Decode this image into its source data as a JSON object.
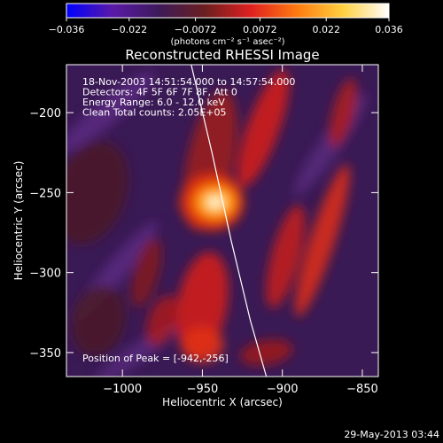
{
  "chart_data": {
    "type": "heatmap",
    "title": "Reconstructed RHESSI Image",
    "xlabel": "Heliocentric X (arcsec)",
    "ylabel": "Heliocentric Y (arcsec)",
    "xlim": [
      -1035,
      -840
    ],
    "ylim": [
      -365,
      -170
    ],
    "xticks": [
      {
        "value": -1000,
        "label": "−1000"
      },
      {
        "value": -950,
        "label": "−950"
      },
      {
        "value": -900,
        "label": "−900"
      },
      {
        "value": -850,
        "label": "−850"
      }
    ],
    "yticks": [
      {
        "value": -200,
        "label": "−200"
      },
      {
        "value": -250,
        "label": "−250"
      },
      {
        "value": -300,
        "label": "−300"
      },
      {
        "value": -350,
        "label": "−350"
      }
    ],
    "colorbar": {
      "range": [
        -0.036,
        0.036
      ],
      "ticks": [
        {
          "value": -0.036,
          "label": "−0.036"
        },
        {
          "value": -0.022,
          "label": "−0.022"
        },
        {
          "value": -0.0072,
          "label": "−0.0072"
        },
        {
          "value": 0.0072,
          "label": "0.0072"
        },
        {
          "value": 0.022,
          "label": "0.022"
        },
        {
          "value": 0.036,
          "label": "0.036"
        }
      ],
      "unit_label": "(photons cm⁻² s⁻¹ asec⁻²)",
      "colors": [
        "#0000ff",
        "#5a1aa8",
        "#3d1a5a",
        "#6a1f1f",
        "#e02020",
        "#ff7a10",
        "#ffd040",
        "#ffffff"
      ]
    },
    "info_lines": [
      "18-Nov-2003 14:51:54.000 to 14:57:54.000",
      "Detectors: 4F 5F 6F 7F 8F, Att 0",
      "Energy Range: 6.0 - 12.0 keV",
      "Clean    Total counts: 2.05E+05"
    ],
    "peak": {
      "x": -942,
      "y": -256,
      "value": 0.036
    },
    "peak_label": "Position of Peak = [-942,-256]",
    "limb_curve": [
      {
        "x": -957,
        "y": -170
      },
      {
        "x": -944,
        "y": -225
      },
      {
        "x": -932,
        "y": -280
      },
      {
        "x": -920,
        "y": -330
      },
      {
        "x": -910,
        "y": -365
      }
    ],
    "date_stamp": "29-May-2013 03:44"
  }
}
